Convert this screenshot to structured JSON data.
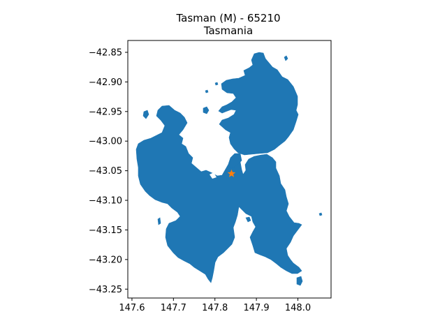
{
  "title": {
    "line1": "Tasman (M) - 65210",
    "line2": "Tasmania"
  },
  "colors": {
    "land": "#1f77b4",
    "marker": "#ff7f0e",
    "background": "#ffffff",
    "axes": "#000000"
  },
  "chart_data": {
    "type": "map",
    "xlim": [
      147.59,
      148.08
    ],
    "ylim": [
      -43.265,
      -42.83
    ],
    "x_ticks": [
      {
        "value": 147.6,
        "label": "147.6"
      },
      {
        "value": 147.7,
        "label": "147.7"
      },
      {
        "value": 147.8,
        "label": "147.8"
      },
      {
        "value": 147.9,
        "label": "147.9"
      },
      {
        "value": 148.0,
        "label": "148.0"
      }
    ],
    "y_ticks": [
      {
        "value": -42.85,
        "label": "−42.85"
      },
      {
        "value": -42.9,
        "label": "−42.90"
      },
      {
        "value": -42.95,
        "label": "−42.95"
      },
      {
        "value": -43.0,
        "label": "−43.00"
      },
      {
        "value": -43.05,
        "label": "−43.05"
      },
      {
        "value": -43.1,
        "label": "−43.10"
      },
      {
        "value": -43.15,
        "label": "−43.15"
      },
      {
        "value": -43.2,
        "label": "−43.20"
      },
      {
        "value": -43.25,
        "label": "−43.25"
      }
    ],
    "marker": {
      "lon": 147.84,
      "lat": -43.055,
      "symbol": "star-icon"
    },
    "region_shape": "land-polygon",
    "grid": false
  }
}
